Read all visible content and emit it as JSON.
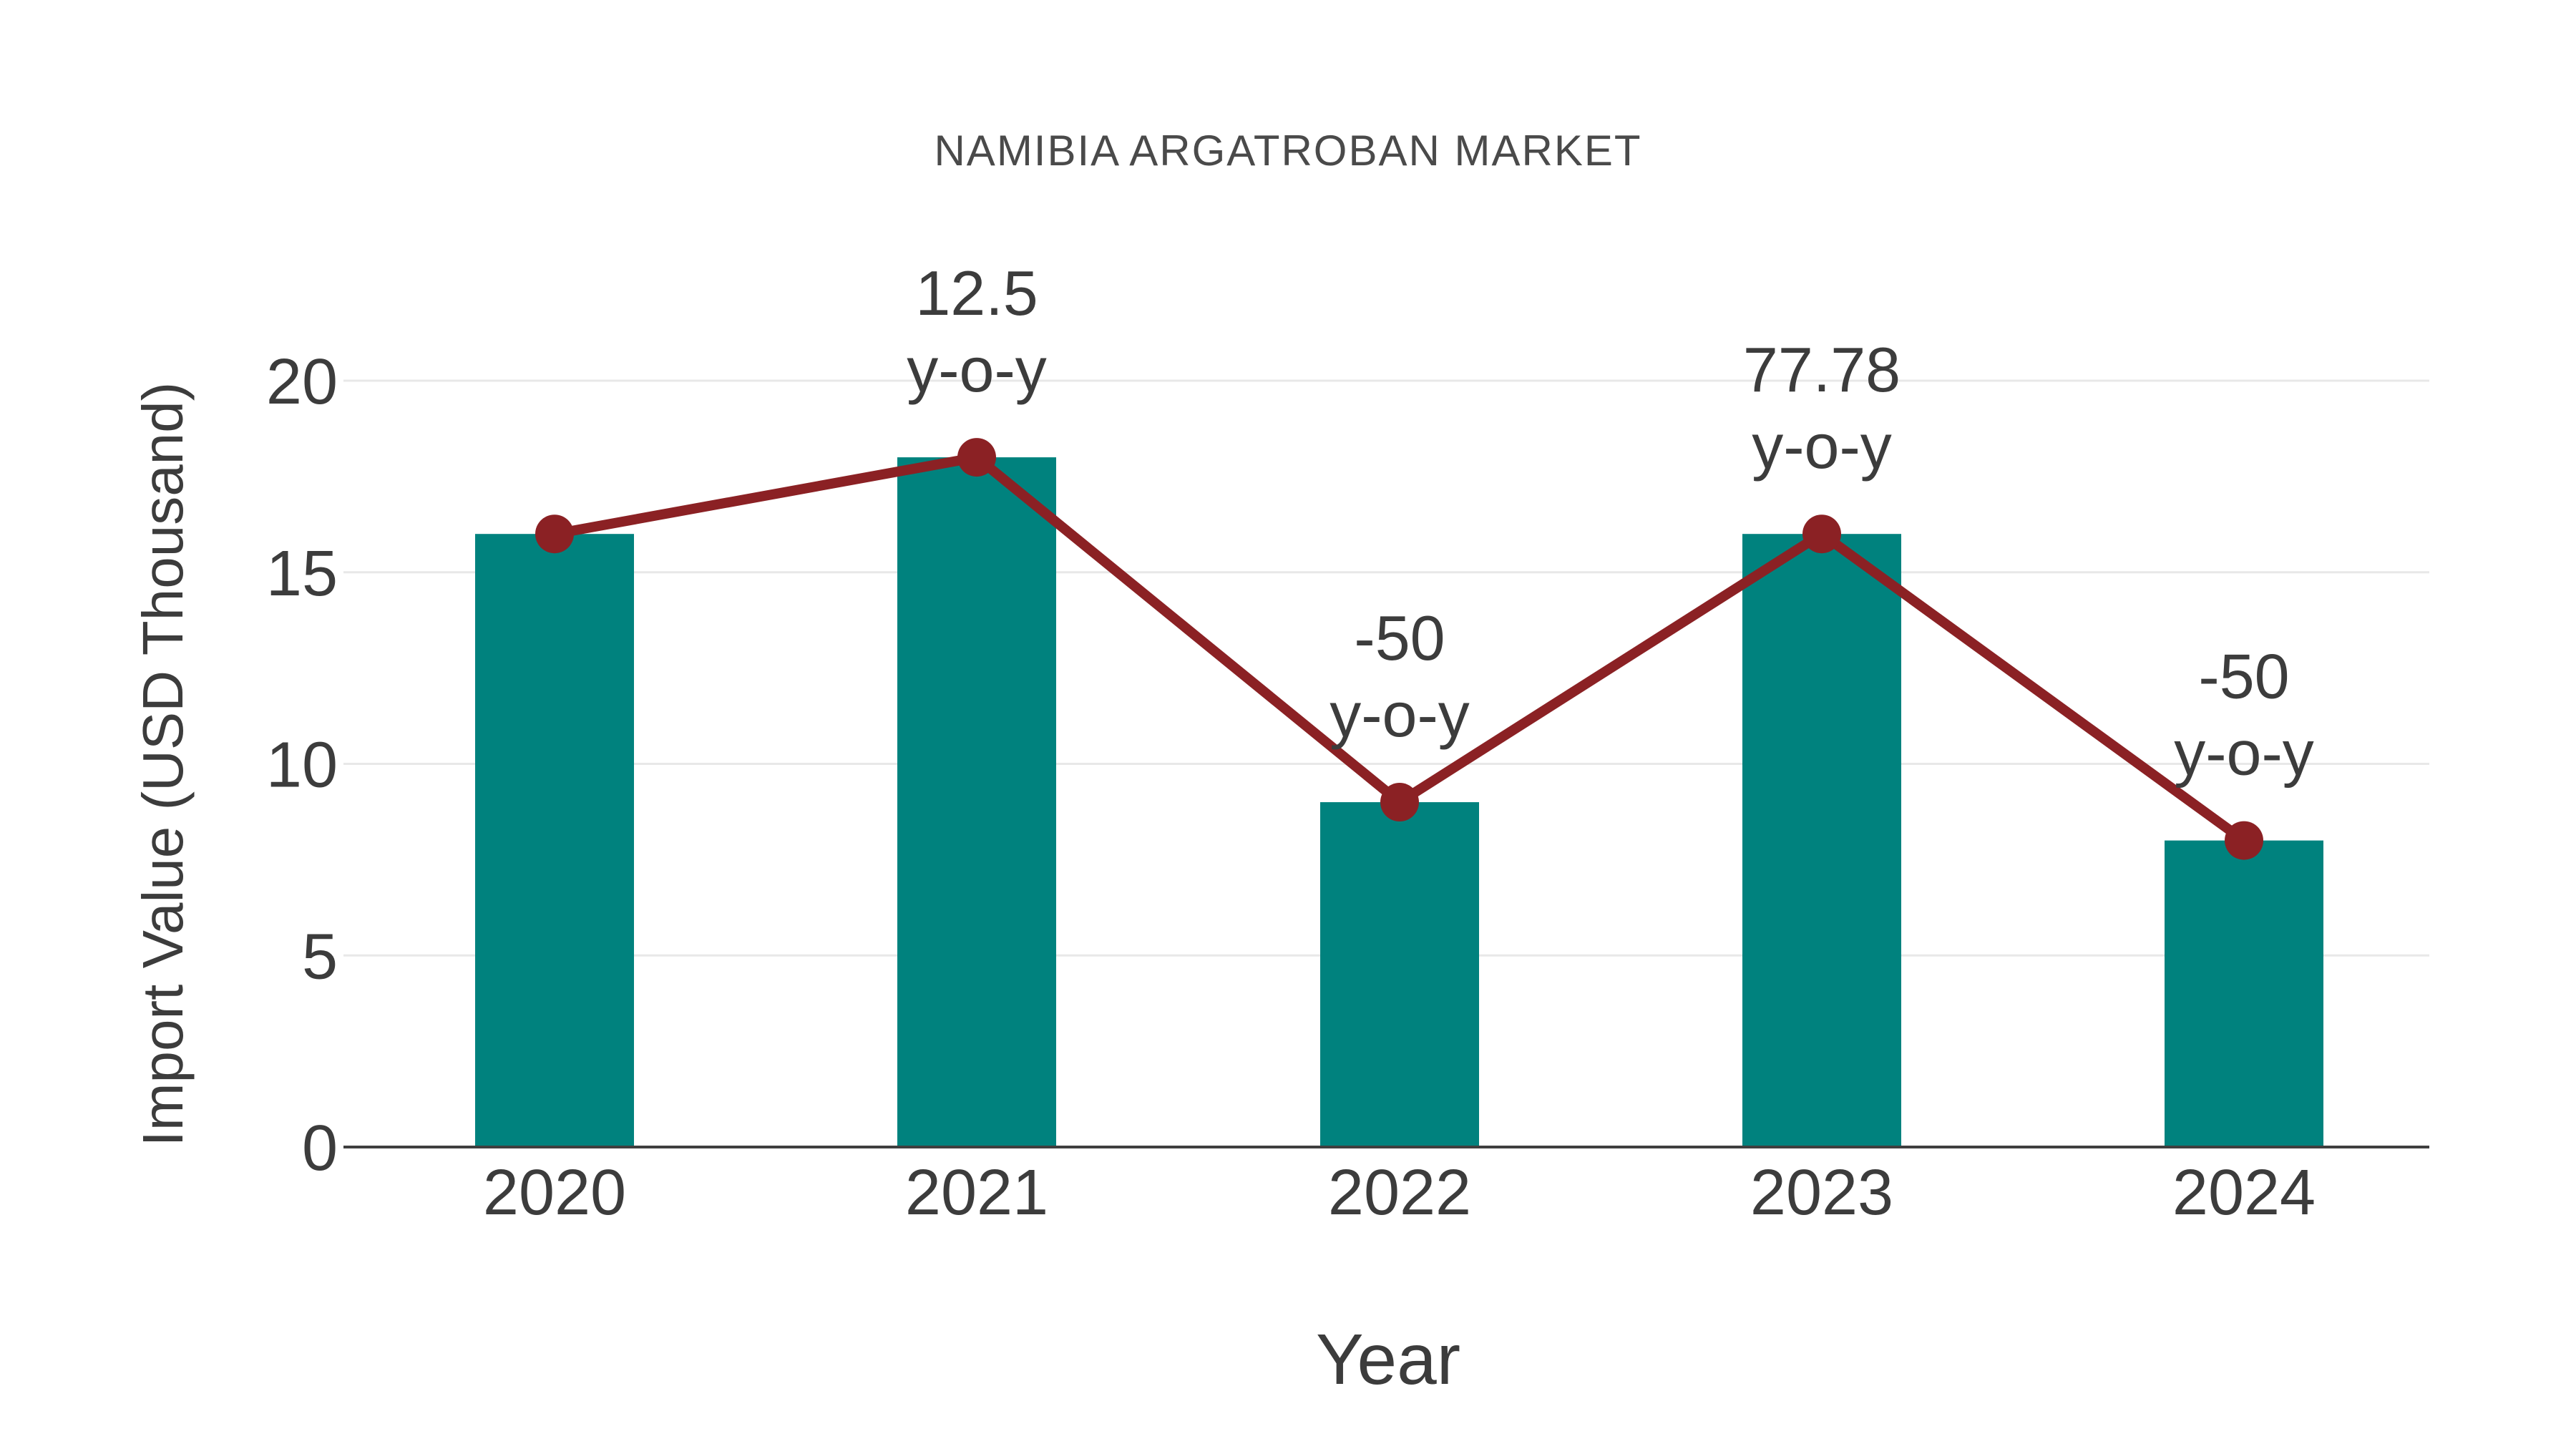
{
  "chart": {
    "title": "NAMIBIA ARGATROBAN MARKET",
    "xlabel": "Year",
    "ylabel": "Import Value (USD Thousand)"
  },
  "chart_data": {
    "type": "bar",
    "title": "NAMIBIA ARGATROBAN MARKET",
    "xlabel": "Year",
    "ylabel": "Import Value (USD Thousand)",
    "categories": [
      "2020",
      "2021",
      "2022",
      "2023",
      "2024"
    ],
    "series": [
      {
        "name": "Import Value (USD Thousand)",
        "type": "bar",
        "color": "#00827E",
        "values": [
          16,
          18,
          9,
          16,
          8
        ]
      },
      {
        "name": "y-o-y trend line",
        "type": "line",
        "color": "#8B2124",
        "values": [
          16,
          18,
          9,
          16,
          8
        ]
      }
    ],
    "annotations": [
      {
        "category": "2021",
        "lines": [
          "12.5",
          "y-o-y"
        ]
      },
      {
        "category": "2022",
        "lines": [
          "-50",
          "y-o-y"
        ]
      },
      {
        "category": "2023",
        "lines": [
          "77.78",
          "y-o-y"
        ]
      },
      {
        "category": "2024",
        "lines": [
          "-50",
          "y-o-y"
        ]
      }
    ],
    "yticks": [
      0,
      5,
      10,
      15,
      20
    ],
    "ylim": [
      0,
      20
    ],
    "grid": true,
    "legend_position": "none",
    "style": {
      "bar_color": "#00827E",
      "line_color": "#8B2124",
      "grid_color": "#E8E8E8",
      "axis_color": "#3F3F3F",
      "text_color": "#3C3C3C",
      "background": "#FFFFFF"
    }
  }
}
